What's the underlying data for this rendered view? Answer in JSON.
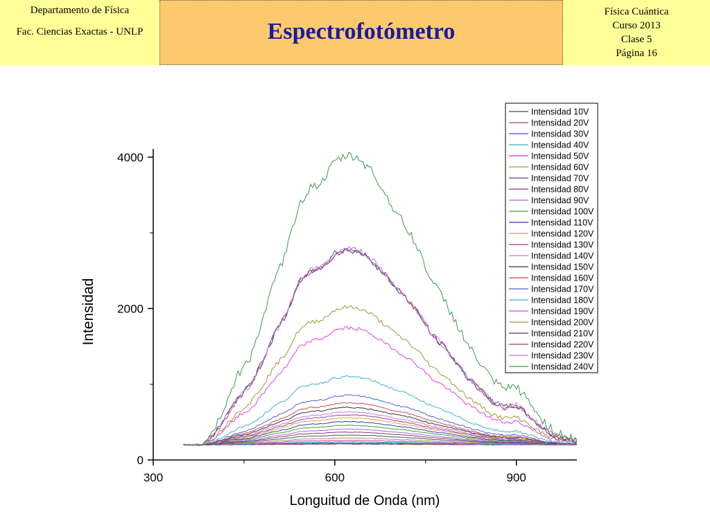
{
  "header": {
    "left": [
      "Departamento de Física",
      "Fac. Ciencias Exactas - UNLP"
    ],
    "title": "Espectrofotómetro",
    "right": [
      "Física Cuántica",
      "Curso 2013",
      "Clase 5",
      "Página 16"
    ]
  },
  "chart_data": {
    "type": "line",
    "xlabel": "Longuitud de Onda (nm)",
    "ylabel": "Intensidad",
    "xlim": [
      300,
      1000
    ],
    "ylim": [
      0,
      4200
    ],
    "xticks": [
      300,
      600,
      900
    ],
    "yticks": [
      0,
      2000,
      4000
    ],
    "legend_position": "top-right",
    "x": [
      350,
      380,
      400,
      420,
      440,
      460,
      480,
      500,
      520,
      540,
      560,
      580,
      600,
      620,
      640,
      660,
      680,
      700,
      720,
      740,
      760,
      780,
      800,
      820,
      840,
      860,
      880,
      900,
      920,
      940,
      960,
      980,
      1000
    ],
    "shape": [
      0,
      0,
      0.05,
      0.14,
      0.24,
      0.3,
      0.42,
      0.56,
      0.66,
      0.82,
      0.88,
      0.9,
      0.97,
      0.99,
      0.98,
      0.94,
      0.87,
      0.8,
      0.74,
      0.66,
      0.56,
      0.5,
      0.42,
      0.34,
      0.28,
      0.22,
      0.19,
      0.2,
      0.15,
      0.09,
      0.05,
      0.03,
      0.02
    ],
    "baseline": 200,
    "series": [
      {
        "name": "Intensidad 10V",
        "color": "#444466",
        "peak": 210
      },
      {
        "name": "Intensidad 20V",
        "color": "#b04a4a",
        "peak": 215
      },
      {
        "name": "Intensidad 30V",
        "color": "#4a4ac8",
        "peak": 225
      },
      {
        "name": "Intensidad 40V",
        "color": "#3cb4b4",
        "peak": 240
      },
      {
        "name": "Intensidad 50V",
        "color": "#c83cc8",
        "peak": 260
      },
      {
        "name": "Intensidad 60V",
        "color": "#a0a03c",
        "peak": 290
      },
      {
        "name": "Intensidad 70V",
        "color": "#4a4a8a",
        "peak": 330
      },
      {
        "name": "Intensidad 80V",
        "color": "#8a3a6a",
        "peak": 370
      },
      {
        "name": "Intensidad 90V",
        "color": "#a868d8",
        "peak": 410
      },
      {
        "name": "Intensidad 100V",
        "color": "#3ca03c",
        "peak": 460
      },
      {
        "name": "Intensidad 110V",
        "color": "#3a3aa8",
        "peak": 510
      },
      {
        "name": "Intensidad 120V",
        "color": "#e0a030",
        "peak": 560
      },
      {
        "name": "Intensidad 130V",
        "color": "#a03ca0",
        "peak": 600
      },
      {
        "name": "Intensidad 140V",
        "color": "#c87ad8",
        "peak": 640
      },
      {
        "name": "Intensidad 150V",
        "color": "#333333",
        "peak": 700
      },
      {
        "name": "Intensidad 160V",
        "color": "#d04a4a",
        "peak": 760
      },
      {
        "name": "Intensidad 170V",
        "color": "#4a64d0",
        "peak": 860
      },
      {
        "name": "Intensidad 180V",
        "color": "#3cb4c8",
        "peak": 1110
      },
      {
        "name": "Intensidad 190V",
        "color": "#e040e0",
        "peak": 1760
      },
      {
        "name": "Intensidad 200V",
        "color": "#9a9a30",
        "peak": 2040
      },
      {
        "name": "Intensidad 210V",
        "color": "#3a3a7a",
        "peak": 2800
      },
      {
        "name": "Intensidad 220V",
        "color": "#a83a5a",
        "peak": 2810
      },
      {
        "name": "Intensidad 230V",
        "color": "#b87ae0",
        "peak": 2820
      },
      {
        "name": "Intensidad 240V",
        "color": "#3a9a4a",
        "peak": 4060
      }
    ]
  }
}
